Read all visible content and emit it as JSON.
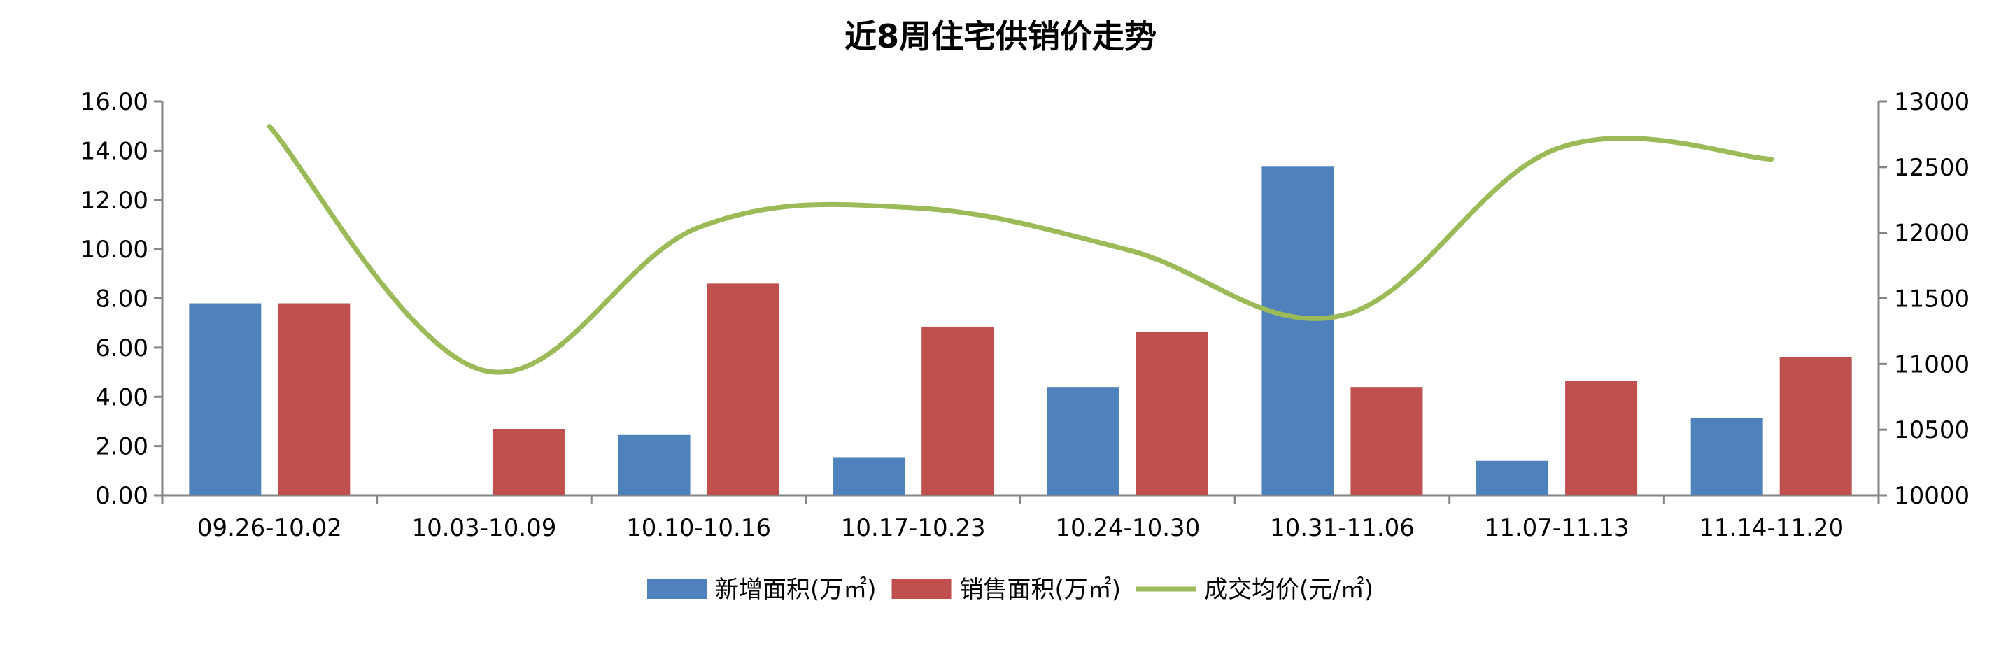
{
  "chart_data": {
    "type": "bar",
    "title": "近8周住宅供销价走势",
    "categories": [
      "09.26-10.02",
      "10.03-10.09",
      "10.10-10.16",
      "10.17-10.23",
      "10.24-10.30",
      "10.31-11.06",
      "11.07-11.13",
      "11.14-11.20"
    ],
    "series": [
      {
        "name": "新增面积(万㎡)",
        "type": "bar",
        "axis": "left",
        "color": "#4f81bd",
        "values": [
          7.8,
          0,
          2.45,
          1.55,
          4.4,
          13.35,
          1.4,
          3.15
        ]
      },
      {
        "name": "销售面积(万㎡)",
        "type": "bar",
        "axis": "left",
        "color": "#c0504d",
        "values": [
          7.8,
          2.7,
          8.6,
          6.85,
          6.65,
          4.4,
          4.65,
          5.6
        ]
      },
      {
        "name": "成交均价(元/㎡)",
        "type": "line",
        "smooth": true,
        "axis": "right",
        "color": "#9bbb59",
        "values": [
          12810,
          10950,
          12040,
          12190,
          11870,
          11370,
          12640,
          12560
        ]
      }
    ],
    "y_left": {
      "min": 0,
      "max": 16,
      "ticks": [
        "0.00",
        "2.00",
        "4.00",
        "6.00",
        "8.00",
        "10.00",
        "12.00",
        "14.00",
        "16.00"
      ]
    },
    "y_right": {
      "min": 10000,
      "max": 13000,
      "ticks": [
        "10000",
        "10500",
        "11000",
        "11500",
        "12000",
        "12500",
        "13000"
      ]
    },
    "grid": false,
    "legend_position": "bottom"
  }
}
